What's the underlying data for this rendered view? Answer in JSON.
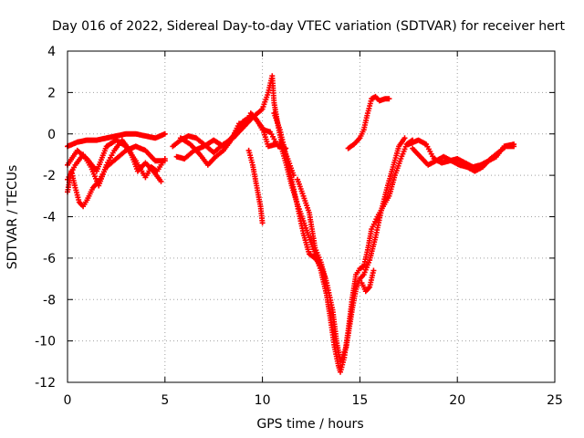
{
  "chart_data": {
    "type": "scatter",
    "title": "Day 016 of 2022, Sidereal Day-to-day VTEC variation (SDTVAR) for receiver hert",
    "xlabel": "GPS time / hours",
    "ylabel": "SDTVAR / TECUs",
    "xlim": [
      0,
      25
    ],
    "ylim": [
      -12,
      4
    ],
    "xticks": [
      0,
      5,
      10,
      15,
      20,
      25
    ],
    "yticks": [
      -12,
      -10,
      -8,
      -6,
      -4,
      -2,
      0,
      2,
      4
    ],
    "grid": true,
    "marker": "+",
    "color": "#ff0000",
    "series": [
      {
        "points": [
          [
            0,
            -0.6
          ],
          [
            0.5,
            -0.4
          ],
          [
            1,
            -0.3
          ],
          [
            1.5,
            -0.3
          ],
          [
            2,
            -0.2
          ],
          [
            2.5,
            -0.1
          ],
          [
            3,
            0
          ],
          [
            3.5,
            0
          ],
          [
            4,
            -0.1
          ],
          [
            4.5,
            -0.2
          ],
          [
            5,
            0
          ]
        ]
      },
      {
        "points": [
          [
            0,
            -2.8
          ],
          [
            0.2,
            -1.8
          ],
          [
            0.4,
            -2.6
          ],
          [
            0.6,
            -3.3
          ],
          [
            0.8,
            -3.5
          ],
          [
            1,
            -3.2
          ],
          [
            1.3,
            -2.6
          ],
          [
            1.6,
            -2.3
          ],
          [
            2,
            -1.6
          ],
          [
            2.5,
            -1.2
          ],
          [
            3,
            -0.8
          ],
          [
            3.5,
            -0.6
          ],
          [
            4,
            -0.8
          ],
          [
            4.5,
            -1.3
          ],
          [
            5,
            -1.3
          ]
        ]
      },
      {
        "points": [
          [
            0,
            -1.5
          ],
          [
            0.5,
            -0.8
          ],
          [
            1,
            -1.2
          ],
          [
            1.5,
            -1.8
          ],
          [
            2,
            -0.6
          ],
          [
            2.5,
            -0.3
          ],
          [
            3,
            -0.6
          ],
          [
            3.5,
            -1.3
          ],
          [
            4,
            -2.1
          ],
          [
            4.3,
            -1.6
          ],
          [
            4.6,
            -1.8
          ],
          [
            5,
            -1.2
          ]
        ]
      },
      {
        "points": [
          [
            0,
            -2.2
          ],
          [
            0.4,
            -1.5
          ],
          [
            0.8,
            -1.0
          ],
          [
            1.2,
            -1.6
          ],
          [
            1.6,
            -2.5
          ],
          [
            2,
            -1.5
          ],
          [
            2.4,
            -0.8
          ],
          [
            2.8,
            -0.3
          ],
          [
            3.2,
            -0.8
          ],
          [
            3.6,
            -1.8
          ],
          [
            4,
            -1.4
          ],
          [
            4.4,
            -1.8
          ],
          [
            4.8,
            -2.3
          ]
        ]
      },
      {
        "points": [
          [
            5.4,
            -0.6
          ],
          [
            5.8,
            -0.3
          ],
          [
            6.2,
            -0.1
          ],
          [
            6.6,
            -0.2
          ],
          [
            7,
            -0.5
          ],
          [
            7.5,
            -0.9
          ],
          [
            8,
            -0.5
          ],
          [
            8.5,
            -0.2
          ],
          [
            9,
            0.3
          ],
          [
            9.5,
            0.8
          ],
          [
            10,
            1.2
          ],
          [
            10.3,
            2.0
          ],
          [
            10.5,
            2.8
          ],
          [
            10.6,
            1.5
          ],
          [
            10.8,
            0.4
          ],
          [
            11,
            -0.5
          ],
          [
            11.3,
            -1.2
          ],
          [
            11.6,
            -2.0
          ]
        ]
      },
      {
        "points": [
          [
            5.6,
            -1.1
          ],
          [
            6,
            -1.2
          ],
          [
            6.5,
            -0.8
          ],
          [
            7,
            -0.6
          ],
          [
            7.5,
            -0.3
          ],
          [
            8,
            -0.6
          ],
          [
            8.5,
            -0.1
          ],
          [
            9,
            0.6
          ],
          [
            9.5,
            0.9
          ],
          [
            10,
            0.3
          ],
          [
            10.3,
            -0.6
          ],
          [
            10.7,
            -0.5
          ]
        ]
      },
      {
        "points": [
          [
            5.8,
            -0.2
          ],
          [
            6.3,
            -0.5
          ],
          [
            6.8,
            -1.0
          ],
          [
            7.2,
            -1.5
          ],
          [
            7.6,
            -1.1
          ],
          [
            8,
            -0.8
          ],
          [
            8.4,
            -0.3
          ],
          [
            8.8,
            0.5
          ],
          [
            9.1,
            0.4
          ],
          [
            9.4,
            1.0
          ],
          [
            9.7,
            0.7
          ],
          [
            10,
            0.2
          ],
          [
            10.4,
            0.1
          ],
          [
            10.8,
            -0.6
          ],
          [
            11.2,
            -0.7
          ]
        ]
      },
      {
        "points": [
          [
            9.3,
            -0.8
          ],
          [
            9.5,
            -1.5
          ],
          [
            9.7,
            -2.5
          ],
          [
            9.9,
            -3.5
          ],
          [
            10,
            -4.3
          ]
        ]
      },
      {
        "points": [
          [
            10.6,
            1.0
          ],
          [
            10.9,
            0.2
          ],
          [
            11.2,
            -1.0
          ],
          [
            11.5,
            -2.2
          ],
          [
            11.8,
            -3.5
          ],
          [
            12.1,
            -4.8
          ],
          [
            12.4,
            -5.8
          ],
          [
            12.7,
            -6.0
          ],
          [
            13,
            -6.4
          ],
          [
            13.2,
            -6.9
          ]
        ]
      },
      {
        "points": [
          [
            10.9,
            -0.4
          ],
          [
            11.2,
            -1.4
          ],
          [
            11.5,
            -2.5
          ],
          [
            11.8,
            -3.4
          ],
          [
            12.1,
            -4.2
          ],
          [
            12.4,
            -5.0
          ],
          [
            12.7,
            -5.8
          ],
          [
            13,
            -6.6
          ],
          [
            13.3,
            -7.8
          ],
          [
            13.5,
            -9.0
          ],
          [
            13.7,
            -10.3
          ],
          [
            13.9,
            -11.2
          ],
          [
            14,
            -11.5
          ],
          [
            14.2,
            -10.8
          ],
          [
            14.4,
            -9.5
          ],
          [
            14.6,
            -8.0
          ],
          [
            14.8,
            -6.8
          ],
          [
            15,
            -6.5
          ],
          [
            15.2,
            -6.4
          ],
          [
            15.4,
            -5.6
          ],
          [
            15.6,
            -4.6
          ],
          [
            15.9,
            -4.0
          ],
          [
            16.2,
            -3.5
          ],
          [
            16.5,
            -3.0
          ],
          [
            16.8,
            -2.0
          ],
          [
            17.1,
            -1.2
          ],
          [
            17.4,
            -0.5
          ],
          [
            17.7,
            -0.3
          ]
        ]
      },
      {
        "points": [
          [
            11.8,
            -2.2
          ],
          [
            12.1,
            -3.0
          ],
          [
            12.4,
            -3.8
          ],
          [
            12.7,
            -5.5
          ],
          [
            13,
            -6.2
          ],
          [
            13.3,
            -7.2
          ],
          [
            13.6,
            -8.5
          ],
          [
            13.8,
            -10.0
          ],
          [
            14,
            -11.0
          ],
          [
            14.3,
            -10.3
          ],
          [
            14.6,
            -8.5
          ],
          [
            14.8,
            -7.5
          ],
          [
            15,
            -7.0
          ],
          [
            15.2,
            -6.8
          ],
          [
            15.5,
            -6.1
          ],
          [
            15.8,
            -5.0
          ],
          [
            16.1,
            -3.7
          ],
          [
            16.4,
            -2.6
          ],
          [
            16.7,
            -1.6
          ],
          [
            17,
            -0.6
          ],
          [
            17.3,
            -0.2
          ]
        ]
      },
      {
        "points": [
          [
            15.1,
            -7.2
          ],
          [
            15.3,
            -7.6
          ],
          [
            15.5,
            -7.4
          ],
          [
            15.7,
            -6.6
          ]
        ]
      },
      {
        "points": [
          [
            14.4,
            -0.7
          ],
          [
            14.7,
            -0.5
          ],
          [
            15,
            -0.2
          ],
          [
            15.2,
            0.2
          ],
          [
            15.4,
            1.0
          ],
          [
            15.6,
            1.7
          ],
          [
            15.8,
            1.8
          ],
          [
            16,
            1.6
          ],
          [
            16.3,
            1.7
          ],
          [
            16.5,
            1.7
          ]
        ]
      },
      {
        "points": [
          [
            17.5,
            -0.5
          ],
          [
            18,
            -0.3
          ],
          [
            18.4,
            -0.5
          ],
          [
            18.8,
            -1.2
          ],
          [
            19.2,
            -1.4
          ],
          [
            19.6,
            -1.3
          ],
          [
            20,
            -1.2
          ],
          [
            20.4,
            -1.4
          ],
          [
            20.8,
            -1.6
          ],
          [
            21.2,
            -1.5
          ],
          [
            21.6,
            -1.3
          ],
          [
            22,
            -1.1
          ],
          [
            22.4,
            -0.6
          ],
          [
            22.9,
            -0.5
          ]
        ]
      },
      {
        "points": [
          [
            17.7,
            -0.7
          ],
          [
            18.1,
            -1.1
          ],
          [
            18.5,
            -1.5
          ],
          [
            18.9,
            -1.3
          ],
          [
            19.3,
            -1.1
          ],
          [
            19.7,
            -1.3
          ],
          [
            20.1,
            -1.5
          ],
          [
            20.5,
            -1.6
          ],
          [
            20.9,
            -1.8
          ],
          [
            21.3,
            -1.6
          ],
          [
            21.7,
            -1.2
          ],
          [
            22.1,
            -0.9
          ],
          [
            22.5,
            -0.6
          ],
          [
            22.9,
            -0.6
          ]
        ]
      }
    ]
  }
}
